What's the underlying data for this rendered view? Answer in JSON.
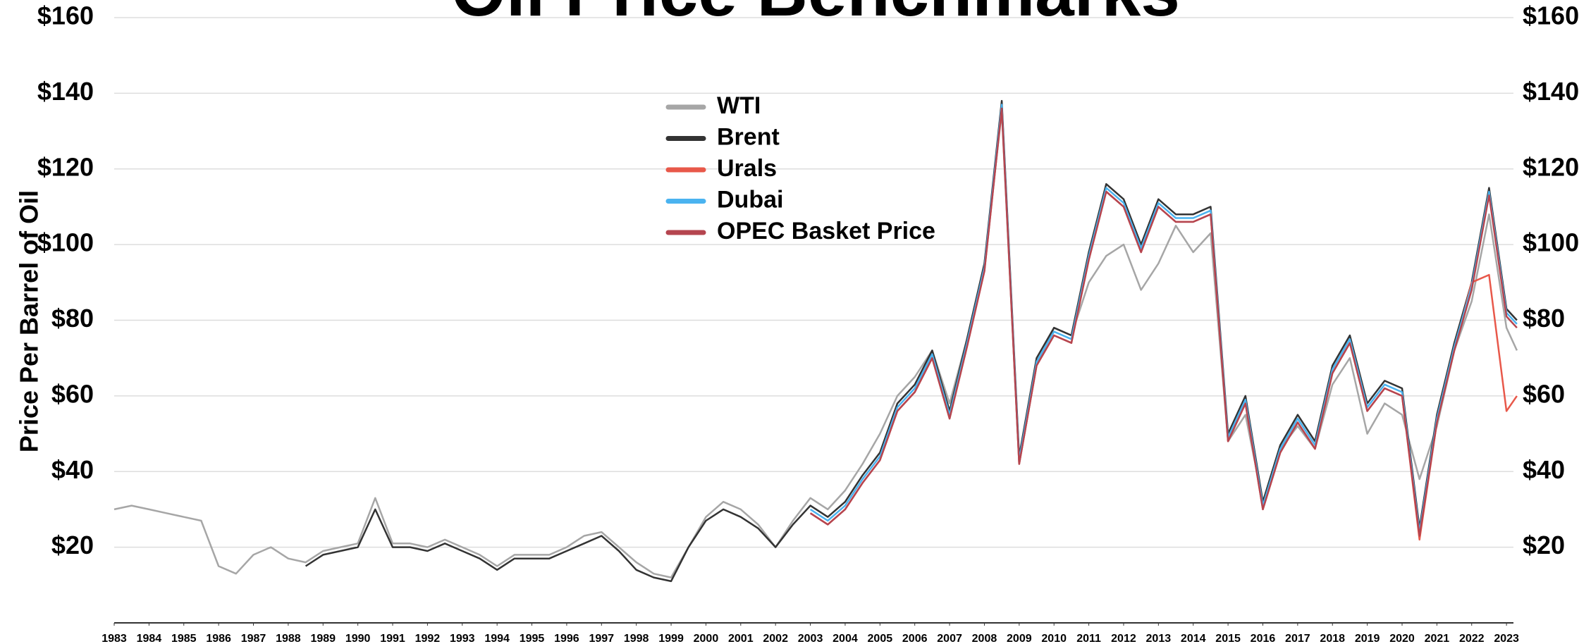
{
  "chart_data": {
    "type": "line",
    "title": "Oil Price Benchmarks",
    "ylabel": "Price Per Barrel of Oil",
    "x": [
      1983,
      1983.5,
      1984,
      1984.5,
      1985,
      1985.5,
      1986,
      1986.5,
      1987,
      1987.5,
      1988,
      1988.5,
      1989,
      1989.5,
      1990,
      1990.5,
      1991,
      1991.5,
      1992,
      1992.5,
      1993,
      1993.5,
      1994,
      1994.5,
      1995,
      1995.5,
      1996,
      1996.5,
      1997,
      1997.5,
      1998,
      1998.5,
      1999,
      1999.5,
      2000,
      2000.5,
      2001,
      2001.5,
      2002,
      2002.5,
      2003,
      2003.5,
      2004,
      2004.5,
      2005,
      2005.5,
      2006,
      2006.5,
      2007,
      2007.5,
      2008,
      2008.5,
      2009,
      2009.5,
      2010,
      2010.5,
      2011,
      2011.5,
      2012,
      2012.5,
      2013,
      2013.5,
      2014,
      2014.5,
      2015,
      2015.5,
      2016,
      2016.5,
      2017,
      2017.5,
      2018,
      2018.5,
      2019,
      2019.5,
      2020,
      2020.5,
      2021,
      2021.5,
      2022,
      2022.5,
      2023,
      2023.3
    ],
    "series": [
      {
        "name": "WTI",
        "color": "#a6a6a6",
        "values": [
          30,
          31,
          30,
          29,
          28,
          27,
          15,
          13,
          18,
          20,
          17,
          16,
          19,
          20,
          21,
          33,
          21,
          21,
          20,
          22,
          20,
          18,
          15,
          18,
          18,
          18,
          20,
          23,
          24,
          20,
          16,
          13,
          12,
          20,
          28,
          32,
          30,
          26,
          20,
          27,
          33,
          30,
          35,
          42,
          50,
          60,
          65,
          72,
          58,
          75,
          95,
          135,
          42,
          68,
          78,
          76,
          90,
          97,
          100,
          88,
          95,
          105,
          98,
          103,
          48,
          55,
          32,
          46,
          52,
          46,
          63,
          70,
          50,
          58,
          55,
          38,
          52,
          72,
          85,
          108,
          78,
          72
        ]
      },
      {
        "name": "Brent",
        "color": "#333333",
        "values": [
          null,
          null,
          null,
          null,
          null,
          null,
          null,
          null,
          null,
          null,
          null,
          15,
          18,
          19,
          20,
          30,
          20,
          20,
          19,
          21,
          19,
          17,
          14,
          17,
          17,
          17,
          19,
          21,
          23,
          19,
          14,
          12,
          11,
          20,
          27,
          30,
          28,
          25,
          20,
          26,
          31,
          28,
          32,
          39,
          45,
          58,
          63,
          72,
          56,
          75,
          95,
          138,
          44,
          70,
          78,
          76,
          98,
          116,
          112,
          100,
          112,
          108,
          108,
          110,
          50,
          60,
          32,
          47,
          55,
          48,
          68,
          76,
          58,
          64,
          62,
          25,
          55,
          74,
          90,
          115,
          83,
          80
        ]
      },
      {
        "name": "Urals",
        "color": "#e8584a",
        "values": [
          null,
          null,
          null,
          null,
          null,
          null,
          null,
          null,
          null,
          null,
          null,
          null,
          null,
          null,
          null,
          null,
          null,
          null,
          null,
          null,
          null,
          null,
          null,
          null,
          null,
          null,
          null,
          null,
          null,
          null,
          null,
          null,
          null,
          null,
          null,
          null,
          null,
          null,
          null,
          null,
          29,
          26,
          30,
          37,
          43,
          56,
          61,
          70,
          54,
          73,
          93,
          136,
          42,
          68,
          76,
          74,
          96,
          114,
          110,
          98,
          110,
          106,
          106,
          108,
          48,
          58,
          30,
          45,
          53,
          46,
          66,
          74,
          56,
          62,
          60,
          22,
          53,
          72,
          90,
          92,
          56,
          60
        ]
      },
      {
        "name": "Dubai",
        "color": "#4ab3f0",
        "values": [
          null,
          null,
          null,
          null,
          null,
          null,
          null,
          null,
          null,
          null,
          null,
          null,
          null,
          null,
          null,
          null,
          null,
          null,
          null,
          null,
          null,
          null,
          null,
          null,
          null,
          null,
          null,
          null,
          null,
          null,
          null,
          null,
          null,
          null,
          null,
          null,
          null,
          null,
          null,
          null,
          30,
          27,
          31,
          38,
          44,
          57,
          62,
          71,
          55,
          74,
          94,
          137,
          43,
          69,
          77,
          75,
          97,
          115,
          111,
          99,
          111,
          107,
          107,
          109,
          49,
          59,
          31,
          46,
          54,
          47,
          67,
          75,
          57,
          63,
          61,
          24,
          54,
          73,
          89,
          114,
          82,
          79
        ]
      },
      {
        "name": "OPEC Basket Price",
        "color": "#b5454f",
        "values": [
          null,
          null,
          null,
          null,
          null,
          null,
          null,
          null,
          null,
          null,
          null,
          null,
          null,
          null,
          null,
          null,
          null,
          null,
          null,
          null,
          null,
          null,
          null,
          null,
          null,
          null,
          null,
          null,
          null,
          null,
          null,
          null,
          null,
          null,
          null,
          null,
          null,
          null,
          null,
          null,
          29,
          26,
          30,
          37,
          43,
          56,
          61,
          70,
          54,
          73,
          93,
          136,
          42,
          68,
          76,
          74,
          96,
          114,
          110,
          98,
          110,
          106,
          106,
          108,
          48,
          58,
          30,
          45,
          53,
          46,
          66,
          74,
          56,
          62,
          60,
          23,
          53,
          72,
          88,
          113,
          81,
          78
        ]
      }
    ],
    "xlim": [
      1983,
      2023.2
    ],
    "xticks": [
      1983,
      1984,
      1985,
      1986,
      1987,
      1988,
      1989,
      1990,
      1991,
      1992,
      1993,
      1994,
      1995,
      1996,
      1997,
      1998,
      1999,
      2000,
      2001,
      2002,
      2003,
      2004,
      2005,
      2006,
      2007,
      2008,
      2009,
      2010,
      2011,
      2012,
      2013,
      2014,
      2015,
      2016,
      2017,
      2018,
      2019,
      2020,
      2021,
      2022,
      2023
    ],
    "ylim": [
      0,
      160
    ],
    "yticks": [
      {
        "value": 20,
        "label": "$20"
      },
      {
        "value": 40,
        "label": "$40"
      },
      {
        "value": 60,
        "label": "$60"
      },
      {
        "value": 80,
        "label": "$80"
      },
      {
        "value": 100,
        "label": "$100"
      },
      {
        "value": 120,
        "label": "$120"
      },
      {
        "value": 140,
        "label": "$140"
      },
      {
        "value": 160,
        "label": "$160"
      }
    ],
    "grid": true
  }
}
